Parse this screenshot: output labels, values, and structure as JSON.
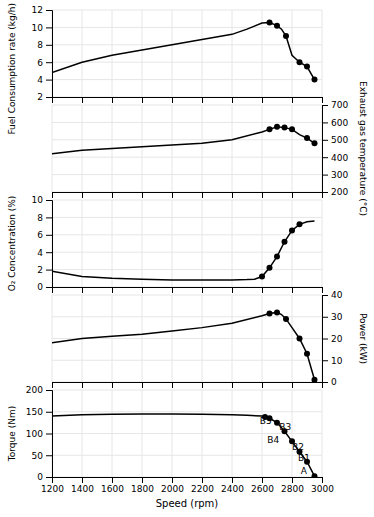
{
  "chart_data": [
    {
      "type": "line",
      "y_label": "Fuel Consumption rate (kg/h)",
      "series": [
        {
          "type": "line",
          "color": "black",
          "x": [
            1200,
            1400,
            1600,
            1800,
            2000,
            2200,
            2400,
            2500,
            2600,
            2650,
            2700,
            2730,
            2760,
            2800,
            2850,
            2900,
            2950
          ],
          "values": [
            4.8,
            6.0,
            6.8,
            7.4,
            8.0,
            8.6,
            9.2,
            9.8,
            10.5,
            10.55,
            10.2,
            9.8,
            9.0,
            6.8,
            6.0,
            5.5,
            4.0
          ]
        },
        {
          "type": "scatter",
          "color": "black",
          "marker": "circle",
          "x": [
            2650,
            2700,
            2760,
            2850,
            2900,
            2950
          ],
          "values": [
            10.55,
            10.2,
            9.0,
            6.0,
            5.5,
            4.0
          ]
        }
      ],
      "xlim": [
        1200,
        3000
      ],
      "xticks": [
        1200,
        1400,
        1600,
        1800,
        2000,
        2200,
        2400,
        2600,
        2800,
        3000
      ],
      "ylim": [
        2,
        12
      ],
      "yticks": [
        2,
        4,
        6,
        8,
        10,
        12
      ],
      "grid": true,
      "tick_labels": "y"
    },
    {
      "type": "line",
      "y2_label": "Exhaust gas temperature (°C)",
      "series": [
        {
          "type": "line",
          "color": "black",
          "axis": "y2",
          "x": [
            1200,
            1400,
            1600,
            1800,
            2000,
            2200,
            2400,
            2600,
            2650,
            2700,
            2750,
            2800,
            2850,
            2900,
            2950
          ],
          "values": [
            420,
            440,
            450,
            460,
            470,
            480,
            500,
            545,
            560,
            575,
            570,
            560,
            530,
            510,
            480
          ]
        },
        {
          "type": "scatter",
          "color": "black",
          "marker": "circle",
          "axis": "y2",
          "x": [
            2650,
            2700,
            2750,
            2800,
            2900,
            2950
          ],
          "values": [
            560,
            575,
            570,
            560,
            510,
            480
          ]
        }
      ],
      "xlim": [
        1200,
        3000
      ],
      "xticks": [
        1200,
        1400,
        1600,
        1800,
        2000,
        2200,
        2400,
        2600,
        2800,
        3000
      ],
      "y2lim": [
        200,
        700
      ],
      "y2ticks": [
        200,
        300,
        400,
        500,
        600,
        700
      ],
      "grid": true,
      "tick_labels": "y"
    },
    {
      "type": "line",
      "y_label": "O₂ Concentration (%)",
      "series": [
        {
          "type": "line",
          "color": "black",
          "x": [
            1200,
            1400,
            1600,
            1800,
            2000,
            2200,
            2400,
            2500,
            2550,
            2600,
            2650,
            2700,
            2750,
            2800,
            2850,
            2900,
            2950
          ],
          "values": [
            1.8,
            1.2,
            1.0,
            0.9,
            0.8,
            0.8,
            0.8,
            0.85,
            0.9,
            1.2,
            2.2,
            3.5,
            5.2,
            6.5,
            7.2,
            7.5,
            7.6
          ]
        },
        {
          "type": "scatter",
          "color": "black",
          "marker": "circle",
          "x": [
            2600,
            2650,
            2700,
            2750,
            2800,
            2850
          ],
          "values": [
            1.2,
            2.2,
            3.5,
            5.2,
            6.5,
            7.2
          ]
        }
      ],
      "xlim": [
        1200,
        3000
      ],
      "xticks": [
        1200,
        1400,
        1600,
        1800,
        2000,
        2200,
        2400,
        2600,
        2800,
        3000
      ],
      "ylim": [
        0,
        10
      ],
      "yticks": [
        0,
        2,
        4,
        6,
        8,
        10
      ],
      "grid": true,
      "tick_labels": "y"
    },
    {
      "type": "line",
      "y2_label": "Power (kW)",
      "series": [
        {
          "type": "line",
          "color": "black",
          "axis": "y2",
          "x": [
            1200,
            1400,
            1600,
            1800,
            2000,
            2200,
            2400,
            2600,
            2650,
            2700,
            2730,
            2760,
            2800,
            2850,
            2900,
            2950
          ],
          "values": [
            18,
            20,
            21,
            22,
            23.5,
            25,
            27,
            30.5,
            31.5,
            32,
            31,
            29,
            25,
            20,
            13,
            1
          ]
        },
        {
          "type": "scatter",
          "color": "black",
          "marker": "circle",
          "axis": "y2",
          "x": [
            2650,
            2700,
            2760,
            2850,
            2900,
            2950
          ],
          "values": [
            31.5,
            32,
            29,
            20,
            13,
            1
          ]
        }
      ],
      "xlim": [
        1200,
        3000
      ],
      "xticks": [
        1200,
        1400,
        1600,
        1800,
        2000,
        2200,
        2400,
        2600,
        2800,
        3000
      ],
      "y2lim": [
        0,
        40
      ],
      "y2ticks": [
        0,
        10,
        20,
        30,
        40
      ],
      "grid": true,
      "tick_labels": "y"
    },
    {
      "type": "line",
      "x_label": "Speed (rpm)",
      "y_label": "Torque (Nm)",
      "series": [
        {
          "type": "line",
          "color": "black",
          "x": [
            1200,
            1400,
            1600,
            1800,
            2000,
            2200,
            2400,
            2500,
            2600,
            2620,
            2650,
            2700,
            2750,
            2800,
            2850,
            2900,
            2950
          ],
          "values": [
            140,
            143,
            144,
            145,
            145,
            144,
            143,
            142,
            140,
            138,
            135,
            125,
            105,
            82,
            58,
            35,
            2
          ]
        },
        {
          "type": "scatter",
          "color": "black",
          "marker": "circle",
          "x": [
            2620,
            2650,
            2700,
            2750,
            2800,
            2850,
            2900,
            2950
          ],
          "values": [
            138,
            135,
            125,
            105,
            82,
            58,
            35,
            2
          ]
        }
      ],
      "annotations": [
        {
          "text": "B5",
          "x": 2585,
          "y": 127
        },
        {
          "text": "B4",
          "x": 2635,
          "y": 83
        },
        {
          "text": "B3",
          "x": 2715,
          "y": 113
        },
        {
          "text": "B2",
          "x": 2800,
          "y": 68
        },
        {
          "text": "B1",
          "x": 2840,
          "y": 42
        },
        {
          "text": "A",
          "x": 2858,
          "y": 13
        }
      ],
      "xlim": [
        1200,
        3000
      ],
      "xticks": [
        1200,
        1400,
        1600,
        1800,
        2000,
        2200,
        2400,
        2600,
        2800,
        3000
      ],
      "ylim": [
        0,
        200
      ],
      "yticks": [
        0,
        50,
        100,
        150,
        200
      ],
      "grid": true
    }
  ]
}
